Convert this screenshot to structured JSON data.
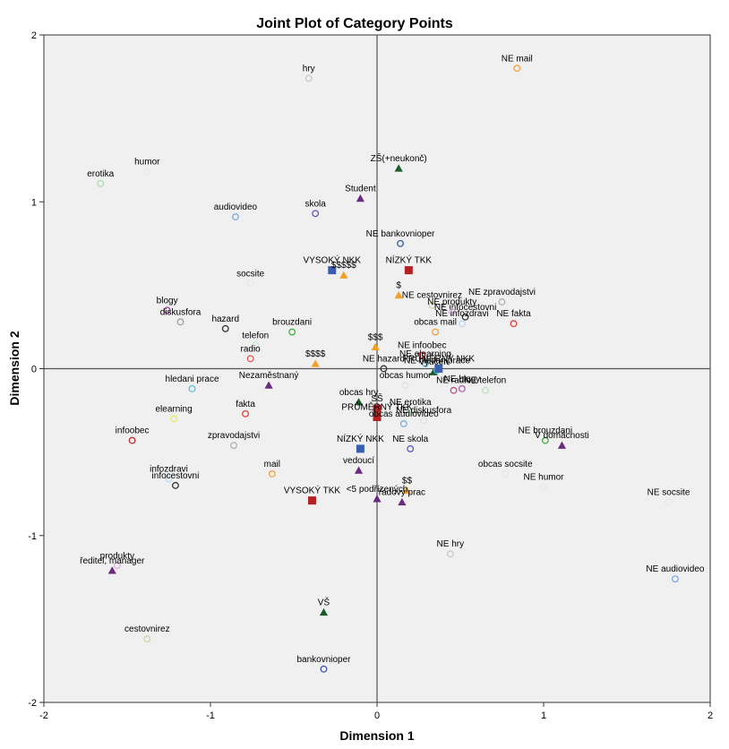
{
  "chart_data": {
    "type": "scatter",
    "title": "Joint Plot of Category Points",
    "xlabel": "Dimension 1",
    "ylabel": "Dimension 2",
    "xlim": [
      -2,
      2
    ],
    "ylim": [
      -2,
      2
    ],
    "x_ticks": [
      "-2",
      "-1",
      "0",
      "1",
      "2"
    ],
    "y_ticks": [
      "-2",
      "-1",
      "0",
      "1",
      "2"
    ],
    "grid": false,
    "reference_lines": {
      "x": 0,
      "y": 0
    },
    "colors": {
      "plot_background": "#f0f0f0",
      "axis_lines": "#555555",
      "square_blue": "#3a5fb0",
      "square_red": "#b22222",
      "triangle_green": "#1a5c2a",
      "triangle_purple": "#6a2a80",
      "triangle_orange": "#f5a020"
    },
    "points": [
      {
        "label": "hry",
        "x": -0.41,
        "y": 1.74,
        "marker": "circle",
        "color": "#c8c8c8"
      },
      {
        "label": "NE mail",
        "x": 0.84,
        "y": 1.8,
        "marker": "circle",
        "color": "#f5a040"
      },
      {
        "label": "humor",
        "x": -1.38,
        "y": 1.18,
        "marker": "circle",
        "color": "#e8e8e8"
      },
      {
        "label": "erotika",
        "x": -1.66,
        "y": 1.11,
        "marker": "circle",
        "color": "#a8e0b0"
      },
      {
        "label": "audiovideo",
        "x": -0.85,
        "y": 0.91,
        "marker": "circle",
        "color": "#7aa8e8"
      },
      {
        "label": "skola",
        "x": -0.37,
        "y": 0.93,
        "marker": "circle",
        "color": "#5a5ac8"
      },
      {
        "label": "Student",
        "x": -0.1,
        "y": 1.02,
        "marker": "triangle",
        "color": "#6a2a80"
      },
      {
        "label": "ZŠ(+neukonč)",
        "x": 0.13,
        "y": 1.2,
        "marker": "triangle",
        "color": "#1a5c2a"
      },
      {
        "label": "NE bankovnioper",
        "x": 0.14,
        "y": 0.75,
        "marker": "circle",
        "color": "#3a5ab0"
      },
      {
        "label": "socsite",
        "x": -0.76,
        "y": 0.51,
        "marker": "circle",
        "color": "#e8e8e8"
      },
      {
        "label": "VYSOKÝ NKK",
        "x": -0.27,
        "y": 0.59,
        "marker": "square",
        "color": "#3a5fb0"
      },
      {
        "label": "$$$$$",
        "x": -0.2,
        "y": 0.56,
        "marker": "triangle",
        "color": "#f5a020"
      },
      {
        "label": "NÍZKÝ TKK",
        "x": 0.19,
        "y": 0.59,
        "marker": "square",
        "color": "#b22222"
      },
      {
        "label": "$",
        "x": 0.13,
        "y": 0.44,
        "marker": "triangle",
        "color": "#f5a020"
      },
      {
        "label": "NE cestovnirez",
        "x": 0.33,
        "y": 0.38,
        "marker": "circle",
        "color": "#c8d8a0"
      },
      {
        "label": "NE zpravodajstvi",
        "x": 0.75,
        "y": 0.4,
        "marker": "circle",
        "color": "#b0b0b0"
      },
      {
        "label": "blogy",
        "x": -1.26,
        "y": 0.35,
        "marker": "circle",
        "color": "#a040a0"
      },
      {
        "label": "diskusfora",
        "x": -1.18,
        "y": 0.28,
        "marker": "circle",
        "color": "#a0a0a0"
      },
      {
        "label": "hazard",
        "x": -0.91,
        "y": 0.24,
        "marker": "circle",
        "color": "#333333"
      },
      {
        "label": "brouzdani",
        "x": -0.51,
        "y": 0.22,
        "marker": "circle",
        "color": "#40b040"
      },
      {
        "label": "telefon",
        "x": -0.73,
        "y": 0.14,
        "marker": "circle",
        "color": "#c8e8c8"
      },
      {
        "label": "NE infocestovni",
        "x": 0.53,
        "y": 0.31,
        "marker": "circle",
        "color": "#333333"
      },
      {
        "label": "NE produkty",
        "x": 0.45,
        "y": 0.34,
        "marker": "circle",
        "color": "#e0b0e0"
      },
      {
        "label": "NE fakta",
        "x": 0.82,
        "y": 0.27,
        "marker": "circle",
        "color": "#e04040"
      },
      {
        "label": "NE infozdravi",
        "x": 0.51,
        "y": 0.27,
        "marker": "circle",
        "color": "#c0d8f0"
      },
      {
        "label": "obcas mail",
        "x": 0.35,
        "y": 0.22,
        "marker": "circle",
        "color": "#f5a040"
      },
      {
        "label": "$$$",
        "x": -0.01,
        "y": 0.13,
        "marker": "triangle",
        "color": "#f5a020"
      },
      {
        "label": "radio",
        "x": -0.76,
        "y": 0.06,
        "marker": "circle",
        "color": "#e05a5a"
      },
      {
        "label": "$$$$",
        "x": -0.37,
        "y": 0.03,
        "marker": "triangle",
        "color": "#f5a020"
      },
      {
        "label": "NE infoobec",
        "x": 0.27,
        "y": 0.08,
        "marker": "circle",
        "color": "#c03030"
      },
      {
        "label": "NE elearning",
        "x": 0.29,
        "y": 0.03,
        "marker": "circle",
        "color": "#60c0d0"
      },
      {
        "label": "NE hazard",
        "x": 0.04,
        "y": 0.0,
        "marker": "circle",
        "color": "#333333"
      },
      {
        "label": "Vyučen",
        "x": 0.34,
        "y": -0.02,
        "marker": "triangle",
        "color": "#1a5c2a"
      },
      {
        "label": "NE hledaniprace",
        "x": 0.36,
        "y": -0.01,
        "marker": "circle",
        "color": "#60c0e0"
      },
      {
        "label": "PRŮMĚRNÝ NKK",
        "x": 0.37,
        "y": 0.0,
        "marker": "square",
        "color": "#3a5fb0"
      },
      {
        "label": "Nezaměstnaný",
        "x": -0.65,
        "y": -0.1,
        "marker": "triangle",
        "color": "#6a2a80"
      },
      {
        "label": "hledani prace",
        "x": -1.11,
        "y": -0.12,
        "marker": "circle",
        "color": "#60c0e0"
      },
      {
        "label": "obcas humor",
        "x": 0.17,
        "y": -0.1,
        "marker": "circle",
        "color": "#e0e0e0"
      },
      {
        "label": "NE radio",
        "x": 0.46,
        "y": -0.13,
        "marker": "circle",
        "color": "#c05080"
      },
      {
        "label": "NE blogy",
        "x": 0.51,
        "y": -0.12,
        "marker": "circle",
        "color": "#b060b0"
      },
      {
        "label": "NE telefon",
        "x": 0.65,
        "y": -0.13,
        "marker": "circle",
        "color": "#c0e0c0"
      },
      {
        "label": "obcas hry",
        "x": -0.11,
        "y": -0.2,
        "marker": "triangle",
        "color": "#1a5c2a"
      },
      {
        "label": "SŠ",
        "x": 0.0,
        "y": -0.24,
        "marker": "square",
        "color": "#b22222"
      },
      {
        "label": "NE erotika",
        "x": 0.2,
        "y": -0.26,
        "marker": "circle",
        "color": "#c0f0c0"
      },
      {
        "label": "fakta",
        "x": -0.79,
        "y": -0.27,
        "marker": "circle",
        "color": "#e04040"
      },
      {
        "label": "elearning",
        "x": -1.22,
        "y": -0.3,
        "marker": "circle",
        "color": "#e8e860"
      },
      {
        "label": "PRŮMĚRNÝ TKK",
        "x": 0.0,
        "y": -0.29,
        "marker": "square",
        "color": "#b22222"
      },
      {
        "label": "NE diskusfora",
        "x": 0.28,
        "y": -0.31,
        "marker": "circle",
        "color": "#e0e0e0"
      },
      {
        "label": "obcas audiovideo",
        "x": 0.16,
        "y": -0.33,
        "marker": "circle",
        "color": "#7aa8e8"
      },
      {
        "label": "infoobec",
        "x": -1.47,
        "y": -0.43,
        "marker": "circle",
        "color": "#c03030"
      },
      {
        "label": "zpravodajstvi",
        "x": -0.86,
        "y": -0.46,
        "marker": "circle",
        "color": "#b0b0b0"
      },
      {
        "label": "NÍZKÝ NKK",
        "x": -0.1,
        "y": -0.48,
        "marker": "square",
        "color": "#3a5fb0"
      },
      {
        "label": "NE skola",
        "x": 0.2,
        "y": -0.48,
        "marker": "circle",
        "color": "#5a5ac8"
      },
      {
        "label": "NE brouzdani",
        "x": 1.01,
        "y": -0.43,
        "marker": "circle",
        "color": "#40b040"
      },
      {
        "label": "V domácnosti",
        "x": 1.11,
        "y": -0.46,
        "marker": "triangle",
        "color": "#6a2a80"
      },
      {
        "label": "mail",
        "x": -0.63,
        "y": -0.63,
        "marker": "circle",
        "color": "#f5a040"
      },
      {
        "label": "vedoucí",
        "x": -0.11,
        "y": -0.61,
        "marker": "triangle",
        "color": "#6a2a80"
      },
      {
        "label": "obcas socsite",
        "x": 0.77,
        "y": -0.63,
        "marker": "circle",
        "color": "#e8e8e8"
      },
      {
        "label": "infozdravi",
        "x": -1.25,
        "y": -0.66,
        "marker": "circle",
        "color": "#c0d8f0"
      },
      {
        "label": "infocestovni",
        "x": -1.21,
        "y": -0.7,
        "marker": "circle",
        "color": "#333333"
      },
      {
        "label": "NE humor",
        "x": 1.0,
        "y": -0.71,
        "marker": "circle",
        "color": "#e8e8e8"
      },
      {
        "label": "$$",
        "x": 0.18,
        "y": -0.73,
        "marker": "triangle",
        "color": "#f5a020"
      },
      {
        "label": "VYSOKÝ TKK",
        "x": -0.39,
        "y": -0.79,
        "marker": "square",
        "color": "#b22222"
      },
      {
        "label": "<5 podřízených",
        "x": 0.0,
        "y": -0.78,
        "marker": "triangle",
        "color": "#6a2a80"
      },
      {
        "label": "řadový prac",
        "x": 0.15,
        "y": -0.8,
        "marker": "triangle",
        "color": "#6a2a80"
      },
      {
        "label": "NE socsite",
        "x": 1.75,
        "y": -0.8,
        "marker": "circle",
        "color": "#e8e8e8"
      },
      {
        "label": "NE hry",
        "x": 0.44,
        "y": -1.11,
        "marker": "circle",
        "color": "#c8c8c8"
      },
      {
        "label": "produkty",
        "x": -1.56,
        "y": -1.18,
        "marker": "circle",
        "color": "#e0b0e0"
      },
      {
        "label": "ředitel, manager",
        "x": -1.59,
        "y": -1.21,
        "marker": "triangle",
        "color": "#6a2a80"
      },
      {
        "label": "NE audiovideo",
        "x": 1.79,
        "y": -1.26,
        "marker": "circle",
        "color": "#7aa8e8"
      },
      {
        "label": "VŠ",
        "x": -0.32,
        "y": -1.46,
        "marker": "triangle",
        "color": "#1a5c2a"
      },
      {
        "label": "cestovnirez",
        "x": -1.38,
        "y": -1.62,
        "marker": "circle",
        "color": "#c8d8a0"
      },
      {
        "label": "bankovnioper",
        "x": -0.32,
        "y": -1.8,
        "marker": "circle",
        "color": "#3a5ab0"
      }
    ]
  }
}
